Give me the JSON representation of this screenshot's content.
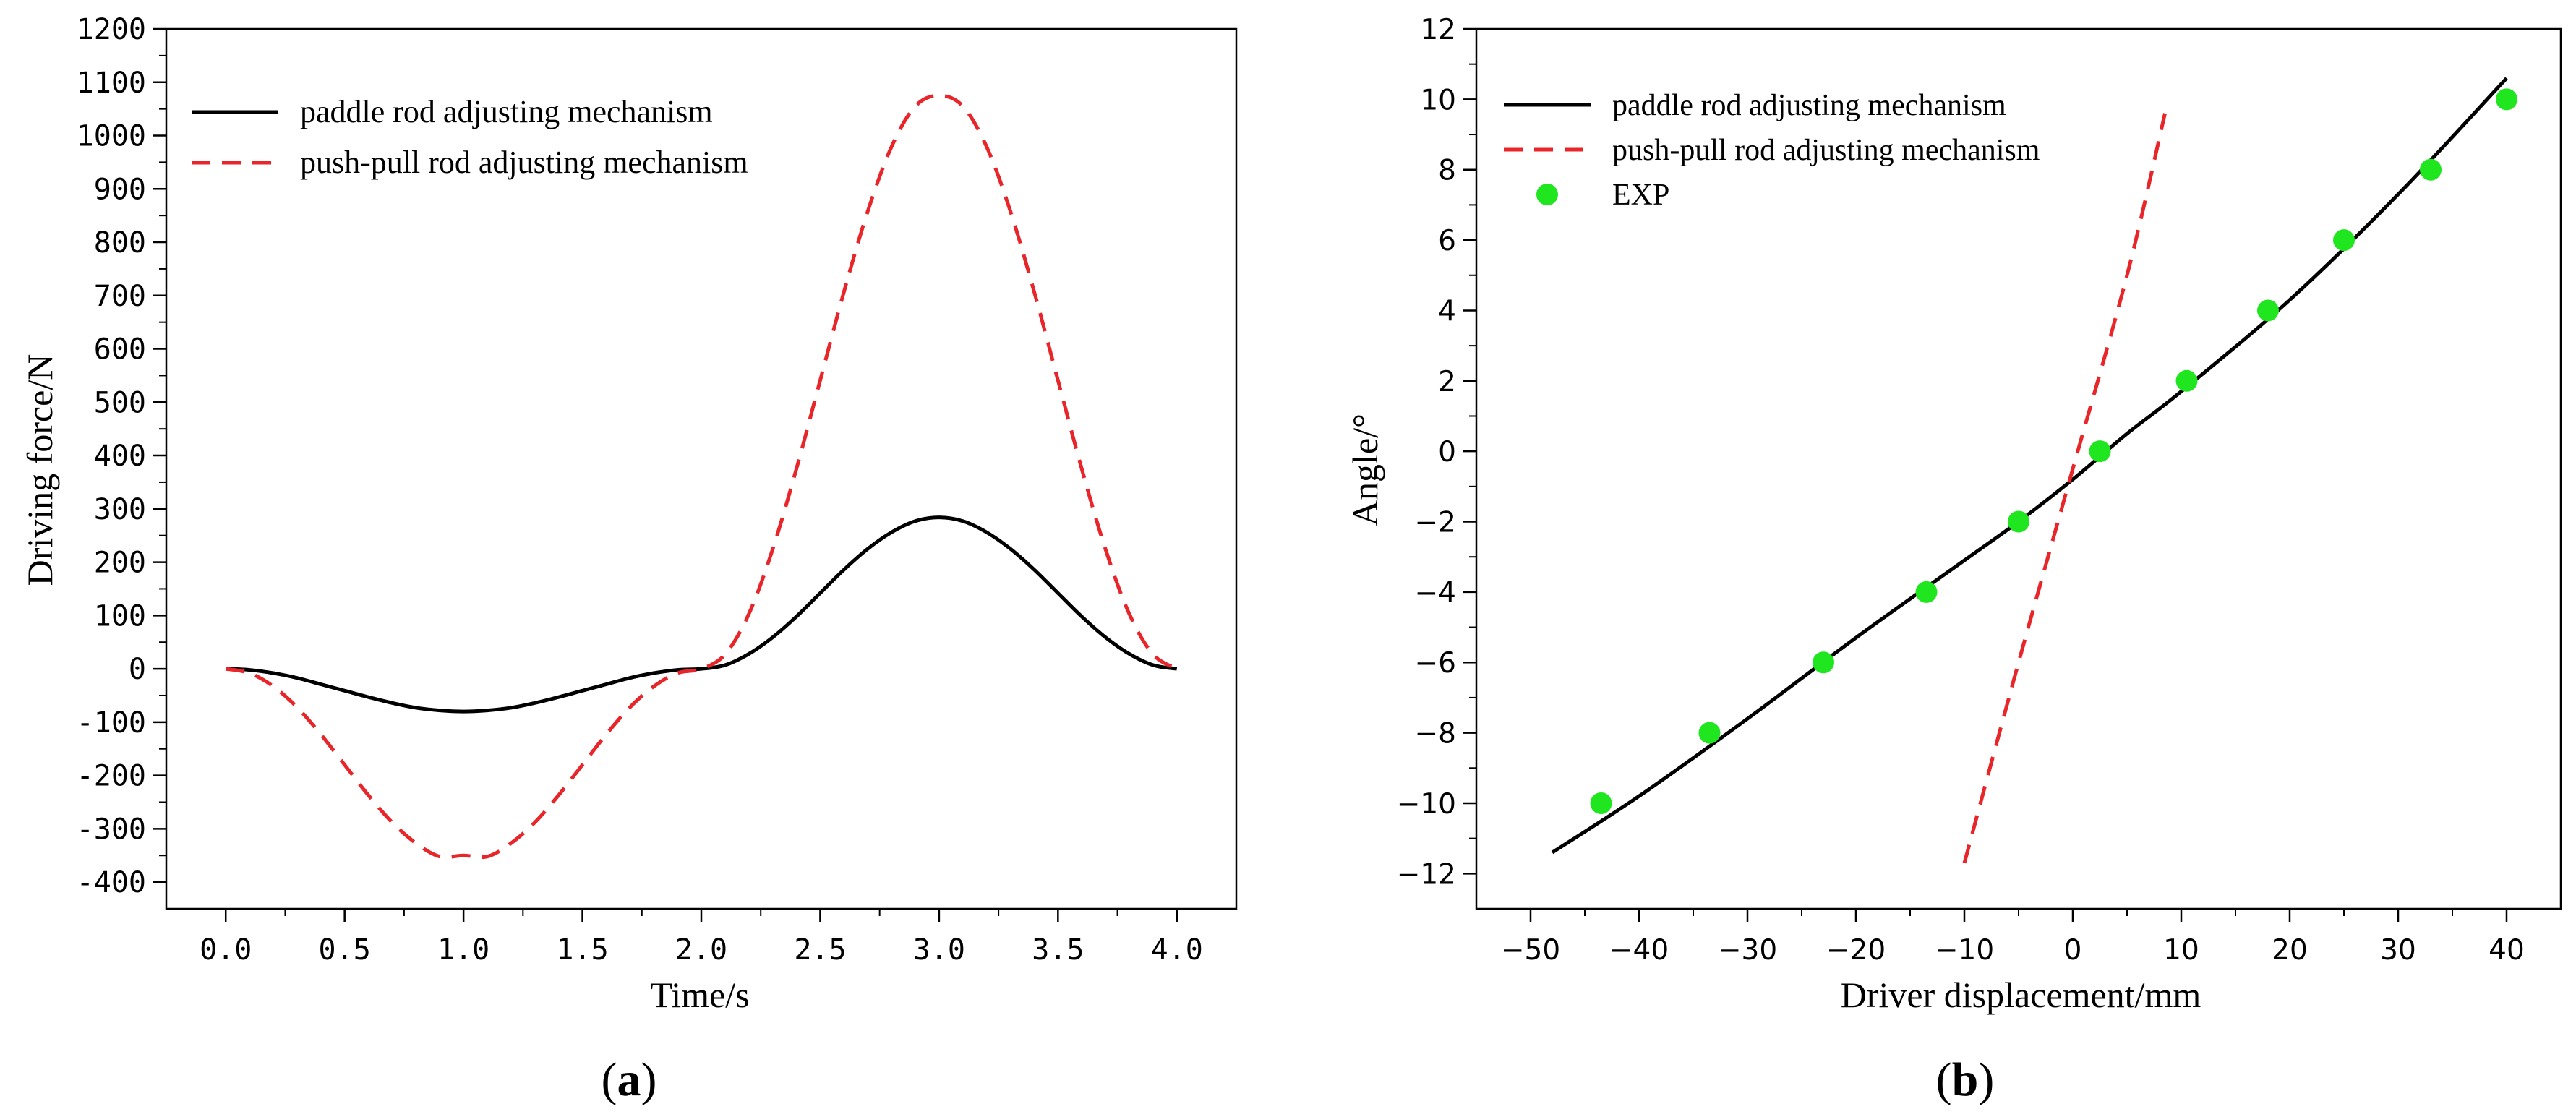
{
  "chart_data": [
    {
      "id": "a",
      "type": "line",
      "panel_label_prefix": "(",
      "panel_label_letter": "a",
      "panel_label_suffix": ")",
      "xlabel": "Time/s",
      "ylabel": "Driving force/N",
      "xlim": [
        -0.25,
        4.25
      ],
      "ylim": [
        -450,
        1200
      ],
      "xticks": [
        0.0,
        0.5,
        1.0,
        1.5,
        2.0,
        2.5,
        3.0,
        3.5,
        4.0
      ],
      "xtick_labels": [
        "0.0",
        "0.5",
        "1.0",
        "1.5",
        "2.0",
        "2.5",
        "3.0",
        "3.5",
        "4.0"
      ],
      "yticks": [
        -400,
        -300,
        -200,
        -100,
        0,
        100,
        200,
        300,
        400,
        500,
        600,
        700,
        800,
        900,
        1000,
        1100,
        1200
      ],
      "ytick_labels": [
        "-400",
        "-300",
        "-200",
        "-100",
        "0",
        "100",
        "200",
        "300",
        "400",
        "500",
        "600",
        "700",
        "800",
        "900",
        "1000",
        "1100",
        "1200"
      ],
      "grid": false,
      "legend_position": "top-left",
      "series": [
        {
          "name": "paddle rod adjusting mechanism",
          "style": "solid",
          "color": "#000000",
          "x": [
            0.0,
            0.1,
            0.2,
            0.3,
            0.4,
            0.5,
            0.6,
            0.7,
            0.8,
            0.9,
            1.0,
            1.1,
            1.2,
            1.3,
            1.4,
            1.5,
            1.6,
            1.7,
            1.8,
            1.9,
            2.0,
            2.1,
            2.2,
            2.3,
            2.4,
            2.5,
            2.6,
            2.7,
            2.8,
            2.9,
            3.0,
            3.1,
            3.2,
            3.3,
            3.4,
            3.5,
            3.6,
            3.7,
            3.8,
            3.9,
            4.0
          ],
          "y": [
            0,
            -2,
            -8,
            -17,
            -29,
            -41,
            -53,
            -64,
            -73,
            -78,
            -80,
            -78,
            -73,
            -64,
            -53,
            -41,
            -29,
            -17,
            -8,
            -2,
            0,
            7,
            28,
            59,
            98,
            142,
            186,
            225,
            256,
            277,
            284,
            277,
            256,
            225,
            186,
            142,
            98,
            59,
            28,
            7,
            0
          ]
        },
        {
          "name": "push-pull rod adjusting mechanism",
          "style": "dashed",
          "color": "#e8262a",
          "x": [
            0.0,
            0.1,
            0.2,
            0.3,
            0.4,
            0.5,
            0.6,
            0.7,
            0.8,
            0.9,
            1.0,
            1.1,
            1.2,
            1.3,
            1.4,
            1.5,
            1.6,
            1.7,
            1.8,
            1.9,
            2.0,
            2.1,
            2.2,
            2.3,
            2.4,
            2.5,
            2.6,
            2.7,
            2.8,
            2.9,
            3.0,
            3.1,
            3.2,
            3.3,
            3.4,
            3.5,
            3.6,
            3.7,
            3.8,
            3.9,
            4.0
          ],
          "y": [
            0,
            -8,
            -33,
            -72,
            -123,
            -180,
            -237,
            -288,
            -327,
            -352,
            -350,
            -352,
            -327,
            -288,
            -237,
            -180,
            -123,
            -72,
            -33,
            -8,
            0,
            27,
            103,
            224,
            375,
            541,
            707,
            858,
            979,
            1055,
            1075,
            1055,
            979,
            858,
            707,
            541,
            375,
            224,
            103,
            27,
            0
          ]
        }
      ]
    },
    {
      "id": "b",
      "type": "line",
      "panel_label_prefix": "(",
      "panel_label_letter": "b",
      "panel_label_suffix": ")",
      "xlabel": "Driver displacement/mm",
      "ylabel": "Angle/°",
      "xlim": [
        -55,
        45
      ],
      "ylim": [
        -13,
        12
      ],
      "xticks": [
        -50,
        -40,
        -30,
        -20,
        -10,
        0,
        10,
        20,
        30,
        40
      ],
      "xtick_labels": [
        "−50",
        "−40",
        "−30",
        "−20",
        "−10",
        "0",
        "10",
        "20",
        "30",
        "40"
      ],
      "yticks": [
        -12,
        -10,
        -8,
        -6,
        -4,
        -2,
        0,
        2,
        4,
        6,
        8,
        10,
        12
      ],
      "ytick_labels": [
        "−12",
        "−10",
        "−8",
        "−6",
        "−4",
        "−2",
        "0",
        "2",
        "4",
        "6",
        "8",
        "10",
        "12"
      ],
      "grid": false,
      "legend_position": "top-left",
      "series": [
        {
          "name": "paddle rod adjusting mechanism",
          "style": "solid",
          "color": "#000000",
          "x": [
            -48,
            -40,
            -30,
            -20,
            -10,
            -5,
            0,
            5,
            10,
            20,
            30,
            40
          ],
          "y": [
            -11.4,
            -9.8,
            -7.6,
            -5.3,
            -3.1,
            -2.0,
            -0.8,
            0.5,
            1.7,
            4.3,
            7.3,
            10.6
          ]
        },
        {
          "name": "push-pull rod adjusting mechanism",
          "style": "dashed",
          "color": "#e8262a",
          "x": [
            -10,
            -5,
            0,
            5,
            8.5
          ],
          "y": [
            -11.7,
            -6.0,
            -0.5,
            5.0,
            9.6
          ]
        },
        {
          "name": "EXP",
          "style": "marker",
          "color": "#1fe61f",
          "x": [
            -43.5,
            -33.5,
            -23,
            -13.5,
            -5,
            2.5,
            10.5,
            18,
            25,
            33,
            40
          ],
          "y": [
            -10,
            -8,
            -6,
            -4,
            -2,
            0,
            2,
            4,
            6,
            8,
            10
          ]
        }
      ]
    }
  ]
}
